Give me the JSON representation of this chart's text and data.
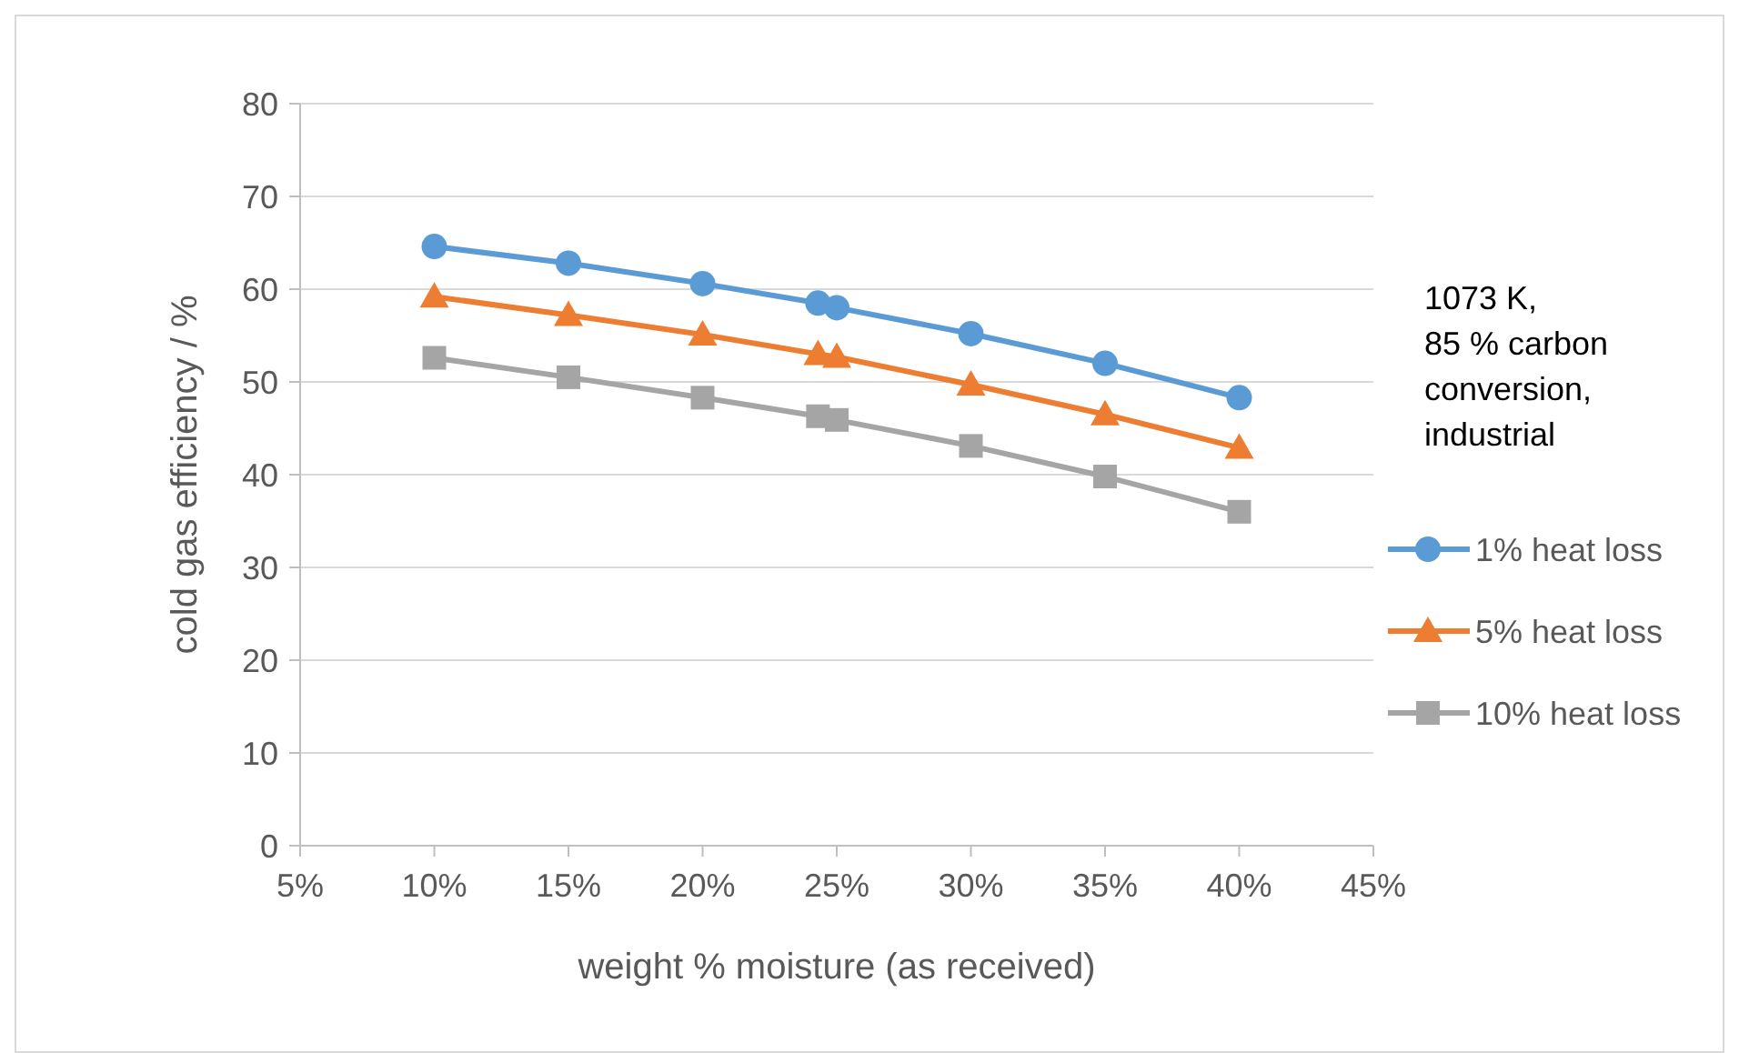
{
  "chart_data": {
    "type": "line",
    "xlabel": "weight % moisture (as received)",
    "ylabel": "cold gas efficiency / %",
    "annotations": [
      "1073 K,\n85 % carbon\nconversion,\nindustrial"
    ],
    "x": [
      10,
      15,
      20,
      24.3,
      25,
      30,
      35,
      40
    ],
    "xlim": [
      5,
      45
    ],
    "xticks": [
      {
        "value": 5,
        "label": "5%"
      },
      {
        "value": 10,
        "label": "10%"
      },
      {
        "value": 15,
        "label": "15%"
      },
      {
        "value": 20,
        "label": "20%"
      },
      {
        "value": 25,
        "label": "25%"
      },
      {
        "value": 30,
        "label": "30%"
      },
      {
        "value": 35,
        "label": "35%"
      },
      {
        "value": 40,
        "label": "40%"
      },
      {
        "value": 45,
        "label": "45%"
      }
    ],
    "ylim": [
      0,
      80
    ],
    "yticks": [
      0,
      10,
      20,
      30,
      40,
      50,
      60,
      70,
      80
    ],
    "grid": "y",
    "legend": "right",
    "line_style": "solid",
    "series": [
      {
        "name": "1% heat loss",
        "color": "#5b9bd5",
        "marker": "circle",
        "values": [
          64.6,
          62.8,
          60.6,
          58.5,
          58.0,
          55.2,
          52.0,
          48.3
        ]
      },
      {
        "name": "5% heat loss",
        "color": "#ed7d31",
        "marker": "triangle",
        "values": [
          59.2,
          57.2,
          55.1,
          53.0,
          52.7,
          49.7,
          46.5,
          42.9
        ]
      },
      {
        "name": "10% heat loss",
        "color": "#a5a5a5",
        "marker": "square",
        "values": [
          52.6,
          50.5,
          48.3,
          46.3,
          45.9,
          43.1,
          39.8,
          36.0
        ]
      }
    ]
  }
}
